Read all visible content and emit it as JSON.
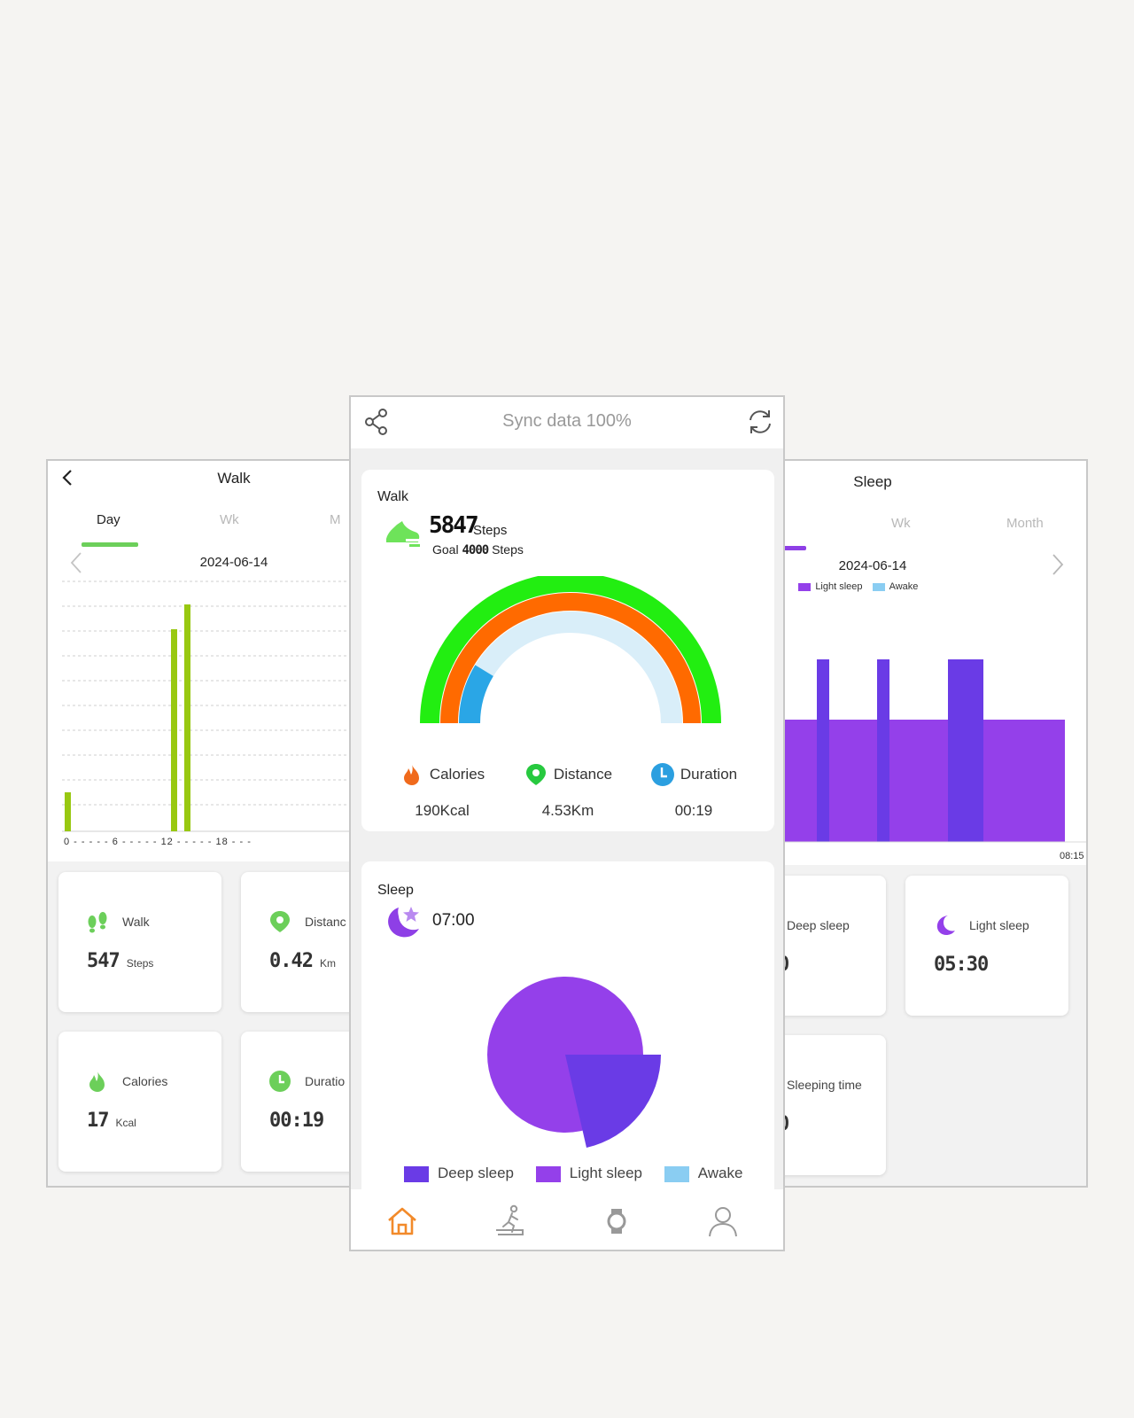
{
  "left_screen": {
    "title": "Walk",
    "tabs": [
      "Day",
      "Wk",
      "M"
    ],
    "date": "2024-06-14",
    "axis_ticks": [
      "0",
      "6",
      "12",
      "18"
    ],
    "accent_color": "#6ccf5a",
    "bar_color": "#98c811",
    "cards": [
      {
        "label": "Walk",
        "value": "547",
        "unit": "Steps",
        "icon": "footprints-icon"
      },
      {
        "label": "Distanc",
        "value": "0.42",
        "unit": "Km",
        "icon": "location-pin-icon"
      },
      {
        "label": "Calories",
        "value": "17",
        "unit": "Kcal",
        "icon": "flame-icon"
      },
      {
        "label": "Duratio",
        "value": "00:19",
        "unit": "",
        "icon": "clock-icon"
      }
    ]
  },
  "center_screen": {
    "sync_text": "Sync data 100%",
    "walk": {
      "title": "Walk",
      "steps": "5847",
      "steps_unit": "Steps",
      "goal_label": "Goal",
      "goal_value": "4000",
      "goal_unit": "Steps",
      "metrics": [
        {
          "label": "Calories",
          "value": "190Kcal",
          "icon": "flame-icon",
          "color": "#f06a1c"
        },
        {
          "label": "Distance",
          "value": "4.53Km",
          "icon": "location-pin-icon",
          "color": "#27c93f"
        },
        {
          "label": "Duration",
          "value": "00:19",
          "icon": "clock-icon",
          "color": "#2b9fe0"
        }
      ],
      "arc_colors": {
        "outer": "#22ee11",
        "middle": "#ff6a00",
        "inner_track": "#d9eef9",
        "inner_fill": "#2aa6e6"
      }
    },
    "sleep": {
      "title": "Sleep",
      "time": "07:00",
      "legend": [
        "Deep sleep",
        "Light sleep",
        "Awake"
      ],
      "colors": {
        "deep": "#6a3be6",
        "light": "#9440ea",
        "awake": "#8acdf2"
      }
    },
    "nav": [
      "home-icon",
      "activity-icon",
      "watch-icon",
      "profile-icon"
    ]
  },
  "right_screen": {
    "title": "Sleep",
    "tabs": [
      "y",
      "Wk",
      "Month"
    ],
    "date": "2024-06-14",
    "legend": [
      "ep",
      "Light sleep",
      "Awake"
    ],
    "end_time": "08:15",
    "cards": [
      {
        "label": "Deep sleep",
        "value": "0",
        "icon": ""
      },
      {
        "label": "Light sleep",
        "value": "05:30",
        "icon": "moon-icon"
      },
      {
        "label": "Sleeping time",
        "value": "0",
        "icon": ""
      }
    ]
  }
}
